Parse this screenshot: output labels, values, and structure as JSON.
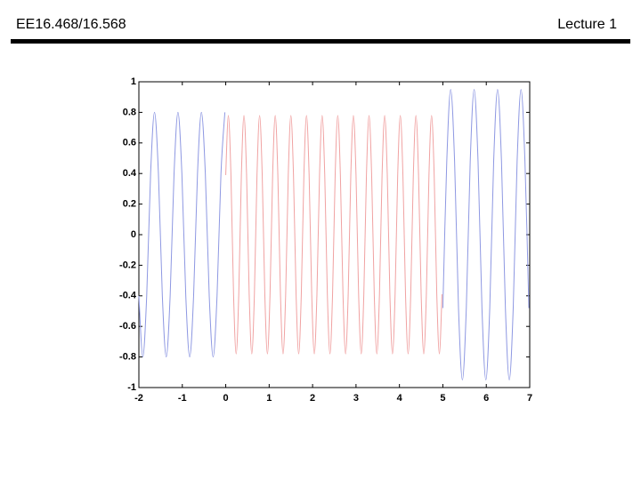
{
  "header": {
    "title": "EE16.468/16.568",
    "lecture": "Lecture 1"
  },
  "chart_data": {
    "type": "line",
    "xlim": [
      -2,
      7
    ],
    "ylim": [
      -1,
      1
    ],
    "xticks": [
      -2,
      -1,
      0,
      1,
      2,
      3,
      4,
      5,
      6,
      7
    ],
    "yticks": [
      -1,
      -0.8,
      -0.6,
      -0.4,
      -0.2,
      0,
      0.2,
      0.4,
      0.6,
      0.8,
      1
    ],
    "grid": false,
    "series": [
      {
        "color": "#8e98e2",
        "x": [
          -2,
          -1.91,
          -1.82,
          -1.73,
          -1.64,
          -1.55,
          -1.46,
          -1.37,
          -1.28,
          -1.19,
          -1.1,
          -1.01,
          -0.92,
          -0.83,
          -0.74,
          -0.65,
          -0.56,
          -0.47,
          -0.38,
          -0.29,
          -0.2,
          -0.11,
          -0.02
        ],
        "values": [
          -0.4,
          -0.8,
          -0.4,
          0.4,
          0.8,
          0.4,
          -0.4,
          -0.8,
          -0.4,
          0.4,
          0.8,
          0.4,
          -0.4,
          -0.8,
          -0.4,
          0.4,
          0.8,
          0.4,
          -0.4,
          -0.8,
          -0.4,
          0.4,
          0.8
        ]
      },
      {
        "color": "#f0a2a2",
        "x": [
          0,
          0.06,
          0.12,
          0.18,
          0.24,
          0.3,
          0.36,
          0.42,
          0.48,
          0.54,
          0.6,
          0.66,
          0.72,
          0.78,
          0.84,
          0.9,
          0.96,
          1.02,
          1.08,
          1.14,
          1.2,
          1.26,
          1.32,
          1.38,
          1.44,
          1.5,
          1.56,
          1.62,
          1.68,
          1.74,
          1.8,
          1.86,
          1.92,
          1.98,
          2.04,
          2.1,
          2.16,
          2.22,
          2.28,
          2.34,
          2.4,
          2.46,
          2.52,
          2.58,
          2.64,
          2.7,
          2.76,
          2.82,
          2.88,
          2.94,
          3,
          3.06,
          3.12,
          3.18,
          3.24,
          3.3,
          3.36,
          3.42,
          3.48,
          3.54,
          3.6,
          3.66,
          3.72,
          3.78,
          3.84,
          3.9,
          3.96,
          4.02,
          4.08,
          4.14,
          4.2,
          4.26,
          4.32,
          4.38,
          4.44,
          4.5,
          4.56,
          4.62,
          4.68,
          4.74,
          4.8,
          4.86,
          4.92,
          4.98
        ],
        "values": [
          0.39,
          0.78,
          0.39,
          -0.39,
          -0.78,
          -0.39,
          0.39,
          0.78,
          0.39,
          -0.39,
          -0.78,
          -0.39,
          0.39,
          0.78,
          0.39,
          -0.39,
          -0.78,
          -0.39,
          0.39,
          0.78,
          0.39,
          -0.39,
          -0.78,
          -0.39,
          0.39,
          0.78,
          0.39,
          -0.39,
          -0.78,
          -0.39,
          0.39,
          0.78,
          0.39,
          -0.39,
          -0.78,
          -0.39,
          0.39,
          0.78,
          0.39,
          -0.39,
          -0.78,
          -0.39,
          0.39,
          0.78,
          0.39,
          -0.39,
          -0.78,
          -0.39,
          0.39,
          0.78,
          0.39,
          -0.39,
          -0.78,
          -0.39,
          0.39,
          0.78,
          0.39,
          -0.39,
          -0.78,
          -0.39,
          0.39,
          0.78,
          0.39,
          -0.39,
          -0.78,
          -0.39,
          0.39,
          0.78,
          0.39,
          -0.39,
          -0.78,
          -0.39,
          0.39,
          0.78,
          0.39,
          -0.39,
          -0.78,
          -0.39,
          0.39,
          0.78,
          0.39,
          -0.39,
          -0.78,
          -0.39
        ]
      },
      {
        "color": "#8e98e2",
        "x": [
          5,
          5.09,
          5.18,
          5.27,
          5.36,
          5.45,
          5.54,
          5.63,
          5.72,
          5.81,
          5.9,
          5.99,
          6.08,
          6.17,
          6.26,
          6.35,
          6.44,
          6.53,
          6.62,
          6.71,
          6.8,
          6.89,
          6.98
        ],
        "values": [
          -0.48,
          0.48,
          0.95,
          0.48,
          -0.48,
          -0.95,
          -0.48,
          0.48,
          0.95,
          0.48,
          -0.48,
          -0.95,
          -0.48,
          0.48,
          0.95,
          0.48,
          -0.48,
          -0.95,
          -0.48,
          0.48,
          0.95,
          0.48,
          -0.48
        ]
      }
    ]
  }
}
